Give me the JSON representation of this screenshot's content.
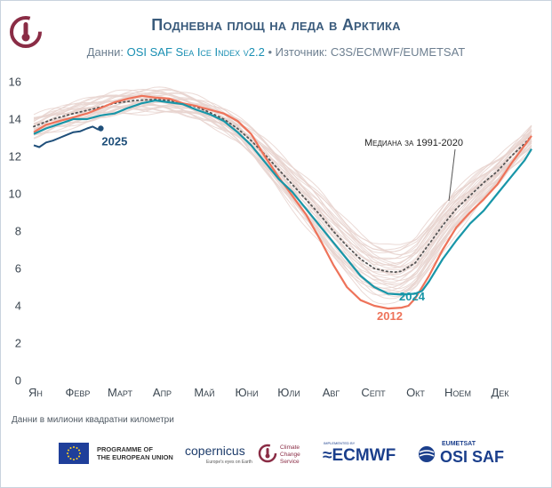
{
  "header": {
    "title": "Подневна площ на леда в Арктика",
    "subtitle_prefix": "Данни: ",
    "subtitle_dataset": "OSI SAF Sea Ice Index v2.2",
    "subtitle_sep": " • Източник: ",
    "subtitle_source": "C3S/ECMWF/EUMETSAT"
  },
  "units_note": "Данни в милиони квадратни километри",
  "logos": {
    "eu_line1": "PROGRAMME OF",
    "eu_line2": "THE EUROPEAN UNION",
    "copernicus": "opernicus",
    "copernicus_tagline": "Europe's eyes on Earth",
    "c3s_line1": "Climate",
    "c3s_line2": "Change Service",
    "ecmwf_small": "IMPLEMENTED BY",
    "ecmwf": "ECMWF",
    "eumetsat": "EUMETSAT",
    "osisaf": "OSI SAF"
  },
  "colors": {
    "y2025": "#1f4f7a",
    "y2024": "#1896a8",
    "y2012": "#ee735a",
    "median": "#555555",
    "background_years": "#e8d3cf",
    "title": "#3a5b7c"
  },
  "chart_data": {
    "type": "line",
    "ylim": [
      0,
      16
    ],
    "yticks": [
      0,
      2,
      4,
      6,
      8,
      10,
      12,
      14,
      16
    ],
    "grid": false,
    "month_labels": [
      "Ян",
      "Февр",
      "Март",
      "Апр",
      "Май",
      "Юни",
      "Юли",
      "Авг",
      "Септ",
      "Окт",
      "Ноем",
      "Дек"
    ],
    "x_unit": "day of year",
    "median_label": "Медиана за 1991-2020",
    "series": [
      {
        "name": "2025",
        "points": [
          [
            1,
            12.6
          ],
          [
            5,
            12.5
          ],
          [
            10,
            12.75
          ],
          [
            15,
            12.85
          ],
          [
            20,
            13.0
          ],
          [
            25,
            13.15
          ],
          [
            30,
            13.3
          ],
          [
            35,
            13.35
          ],
          [
            40,
            13.5
          ],
          [
            44,
            13.6
          ],
          [
            48,
            13.45
          ],
          [
            50,
            13.5
          ]
        ]
      },
      {
        "name": "2024",
        "points": [
          [
            1,
            13.2
          ],
          [
            10,
            13.5
          ],
          [
            20,
            13.75
          ],
          [
            30,
            14.0
          ],
          [
            40,
            14.0
          ],
          [
            50,
            14.2
          ],
          [
            60,
            14.3
          ],
          [
            70,
            14.6
          ],
          [
            80,
            14.85
          ],
          [
            90,
            15.0
          ],
          [
            100,
            14.9
          ],
          [
            110,
            14.8
          ],
          [
            120,
            14.5
          ],
          [
            130,
            14.25
          ],
          [
            140,
            13.9
          ],
          [
            150,
            13.3
          ],
          [
            160,
            12.6
          ],
          [
            170,
            11.7
          ],
          [
            180,
            10.8
          ],
          [
            190,
            10.1
          ],
          [
            200,
            9.2
          ],
          [
            210,
            8.3
          ],
          [
            220,
            7.4
          ],
          [
            230,
            6.5
          ],
          [
            240,
            5.6
          ],
          [
            250,
            5.0
          ],
          [
            260,
            4.65
          ],
          [
            270,
            4.6
          ],
          [
            280,
            4.65
          ],
          [
            285,
            4.8
          ],
          [
            290,
            5.3
          ],
          [
            300,
            6.5
          ],
          [
            310,
            7.5
          ],
          [
            320,
            8.4
          ],
          [
            330,
            9.1
          ],
          [
            340,
            10.0
          ],
          [
            350,
            10.9
          ],
          [
            360,
            11.8
          ],
          [
            365,
            12.4
          ]
        ]
      },
      {
        "name": "2012",
        "points": [
          [
            1,
            13.3
          ],
          [
            10,
            13.7
          ],
          [
            20,
            13.9
          ],
          [
            30,
            14.1
          ],
          [
            40,
            14.3
          ],
          [
            50,
            14.6
          ],
          [
            60,
            14.9
          ],
          [
            70,
            15.1
          ],
          [
            80,
            15.25
          ],
          [
            90,
            15.15
          ],
          [
            100,
            15.1
          ],
          [
            110,
            14.85
          ],
          [
            120,
            14.7
          ],
          [
            130,
            14.5
          ],
          [
            140,
            14.3
          ],
          [
            150,
            13.9
          ],
          [
            160,
            13.2
          ],
          [
            170,
            12.0
          ],
          [
            180,
            10.9
          ],
          [
            190,
            9.9
          ],
          [
            200,
            8.9
          ],
          [
            210,
            7.6
          ],
          [
            220,
            6.2
          ],
          [
            230,
            5.0
          ],
          [
            240,
            4.3
          ],
          [
            250,
            4.0
          ],
          [
            260,
            3.85
          ],
          [
            270,
            3.9
          ],
          [
            275,
            4.0
          ],
          [
            280,
            4.4
          ],
          [
            290,
            5.6
          ],
          [
            300,
            7.0
          ],
          [
            310,
            8.2
          ],
          [
            320,
            9.0
          ],
          [
            330,
            9.7
          ],
          [
            340,
            10.5
          ],
          [
            350,
            11.6
          ],
          [
            360,
            12.6
          ],
          [
            365,
            13.1
          ]
        ]
      },
      {
        "name": "Медиана за 1991-2020",
        "points": [
          [
            1,
            13.6
          ],
          [
            15,
            14.0
          ],
          [
            30,
            14.3
          ],
          [
            45,
            14.55
          ],
          [
            60,
            14.85
          ],
          [
            75,
            15.0
          ],
          [
            90,
            15.05
          ],
          [
            100,
            15.0
          ],
          [
            110,
            14.85
          ],
          [
            120,
            14.65
          ],
          [
            130,
            14.35
          ],
          [
            140,
            14.0
          ],
          [
            150,
            13.5
          ],
          [
            160,
            12.85
          ],
          [
            170,
            12.1
          ],
          [
            180,
            11.3
          ],
          [
            190,
            10.5
          ],
          [
            200,
            9.7
          ],
          [
            210,
            8.9
          ],
          [
            220,
            8.0
          ],
          [
            230,
            7.2
          ],
          [
            240,
            6.5
          ],
          [
            250,
            6.0
          ],
          [
            258,
            5.85
          ],
          [
            265,
            5.8
          ],
          [
            270,
            5.85
          ],
          [
            280,
            6.3
          ],
          [
            290,
            7.3
          ],
          [
            300,
            8.3
          ],
          [
            310,
            9.2
          ],
          [
            320,
            9.9
          ],
          [
            330,
            10.6
          ],
          [
            340,
            11.2
          ],
          [
            350,
            12.0
          ],
          [
            360,
            12.7
          ],
          [
            365,
            13.1
          ]
        ]
      }
    ]
  }
}
